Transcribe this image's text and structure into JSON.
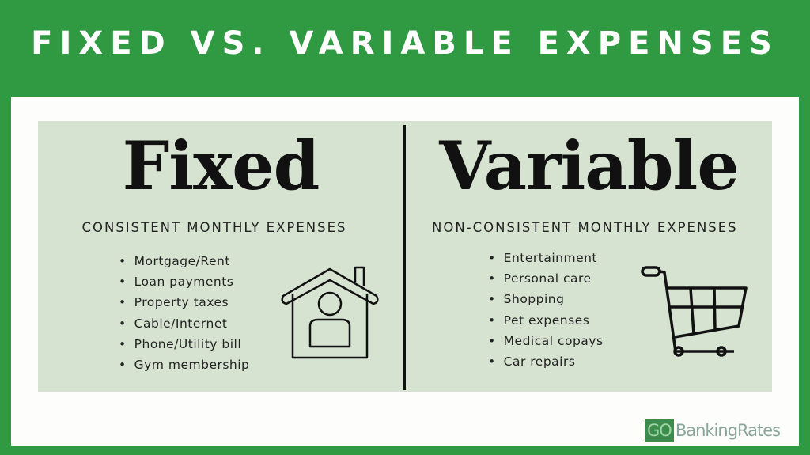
{
  "title": "FIXED VS. VARIABLE EXPENSES",
  "fixed": {
    "heading": "Fixed",
    "subtitle": "CONSISTENT MONTHLY EXPENSES",
    "items": [
      "Mortgage/Rent",
      "Loan payments",
      "Property taxes",
      "Cable/Internet",
      "Phone/Utility bill",
      "Gym membership"
    ],
    "icon": "house-person-icon"
  },
  "variable": {
    "heading": "Variable",
    "subtitle": "NON-CONSISTENT MONTHLY EXPENSES",
    "items": [
      "Entertainment",
      "Personal care",
      "Shopping",
      "Pet expenses",
      "Medical copays",
      "Car repairs"
    ],
    "icon": "shopping-cart-icon"
  },
  "logo": {
    "go": "GO",
    "rest": "BankingRates"
  },
  "colors": {
    "background": "#2f9a41",
    "panel": "#d6e3d0",
    "card": "#fdfefb"
  }
}
